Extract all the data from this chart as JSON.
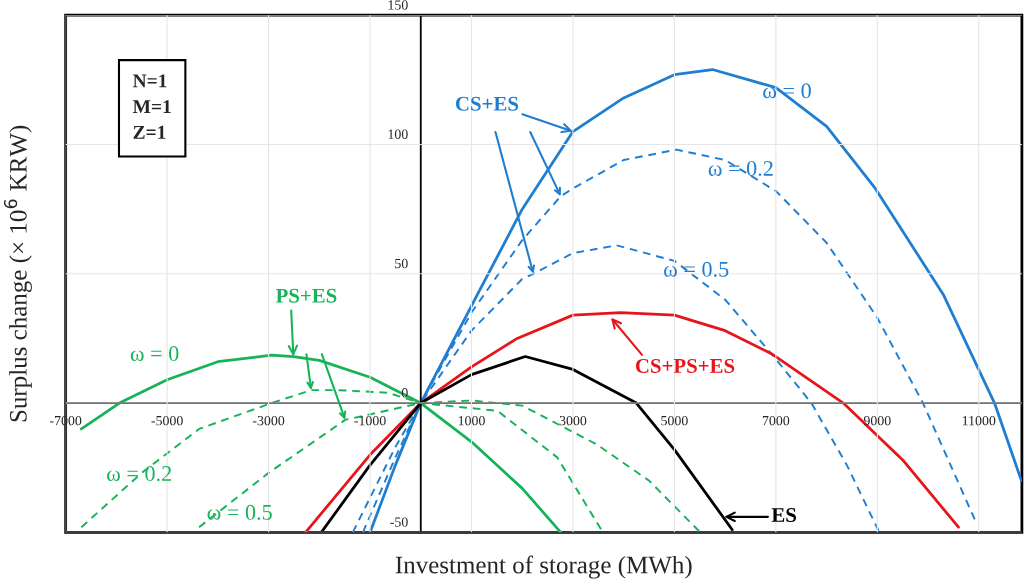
{
  "chart_data": {
    "type": "line",
    "xlabel": "Investment of storage (MWh)",
    "ylabel": "Surplus change (× 10$^{6}$ KRW)",
    "xlim": [
      -7000,
      11850
    ],
    "ylim": [
      -50,
      150
    ],
    "xticks": [
      -7000,
      -5000,
      -3000,
      -1000,
      1000,
      3000,
      5000,
      7000,
      9000,
      11000
    ],
    "yticks": [
      -50,
      0,
      50,
      100,
      150
    ],
    "grid": true,
    "marker": "none",
    "series": [
      {
        "color": "#1f7ed1",
        "line_style": "solid",
        "x": [
          -980,
          -500,
          0,
          1118,
          2000,
          3000,
          4000,
          5000,
          5750,
          7000,
          8000,
          8960,
          10300,
          11310,
          11840
        ],
        "values": [
          -49,
          -24,
          0,
          42,
          75,
          105,
          118,
          127,
          129,
          122,
          107,
          83,
          42,
          0,
          -30
        ]
      },
      {
        "color": "#1f7ed1",
        "line_style": "dashed",
        "x": [
          -1140,
          -500,
          0,
          1000,
          2000,
          2760,
          3000,
          4000,
          5040,
          6000,
          7000,
          8000,
          9000,
          9900,
          10920
        ],
        "values": [
          -50,
          -21,
          0,
          35,
          63,
          80,
          83,
          94,
          98,
          94,
          82,
          62,
          33,
          0,
          -45
        ]
      },
      {
        "color": "#1f7ed1",
        "line_style": "dashed",
        "x": [
          -1340,
          -500,
          0,
          1000,
          2000,
          2220,
          3000,
          3860,
          5000,
          6000,
          7000,
          7700,
          8400,
          9040
        ],
        "values": [
          -50,
          -17,
          0,
          28,
          48,
          50,
          58,
          61,
          55,
          40,
          17,
          0,
          -24,
          -50
        ]
      },
      {
        "color": "#e8141c",
        "line_style": "solid",
        "x": [
          -2270,
          -1000,
          0,
          1000,
          1900,
          3000,
          3940,
          5000,
          6000,
          6920,
          8330,
          9500,
          10600
        ],
        "values": [
          -50,
          -20,
          0,
          14,
          25,
          34,
          35,
          34,
          28,
          19,
          0,
          -22,
          -48
        ]
      },
      {
        "color": "#000000",
        "line_style": "solid",
        "x": [
          -1960,
          -1000,
          0,
          1000,
          2060,
          3000,
          4250,
          5000,
          6140
        ],
        "values": [
          -50,
          -24,
          0,
          11,
          18,
          13,
          0,
          -18,
          -49
        ]
      },
      {
        "color": "#17b35a",
        "line_style": "solid",
        "x": [
          -6690,
          -5940,
          -5000,
          -4000,
          -2940,
          -2510,
          -2000,
          -1000,
          0,
          1000,
          2000,
          2760
        ],
        "values": [
          -10,
          0,
          9,
          16,
          18.5,
          18,
          16.5,
          10,
          0,
          -15,
          -33,
          -50
        ]
      },
      {
        "color": "#17b35a",
        "line_style": "dashed",
        "x": [
          -6690,
          -5500,
          -4370,
          -2940,
          -2160,
          -1630,
          -650,
          0,
          1510,
          2690,
          3590
        ],
        "values": [
          -48,
          -27,
          -10,
          0,
          5,
          5,
          4,
          0,
          -3,
          -21,
          -50
        ]
      },
      {
        "color": "#17b35a",
        "line_style": "dashed",
        "x": [
          -4370,
          -3000,
          -1490,
          0,
          1000,
          2000,
          3470,
          4500,
          5510
        ],
        "values": [
          -48,
          -27,
          -6.5,
          0,
          1,
          -1,
          -16,
          -30,
          -50
        ]
      }
    ],
    "annotations": [
      "N=1\nM=1\nZ=1",
      {
        "text": "ω = 0",
        "x": 7220,
        "y": 120
      },
      {
        "text": "ω = 0.2",
        "x": 6310,
        "y": 90
      },
      {
        "text": "ω = 0.5",
        "x": 5430,
        "y": 51
      },
      "ω = 0",
      {
        "text": "ω = 0.2",
        "x": -5550,
        "y": -28
      },
      "ω = 0.5",
      {
        "text": "CS+ES",
        "x": 3000,
        "y": 105
      },
      {
        "text": "PS+ES",
        "x": -2510,
        "y": 18
      },
      {
        "text": "CS+PS+ES",
        "x": 3750,
        "y": 33
      },
      {
        "text": "ES",
        "x": 5980,
        "y": -44
      }
    ]
  }
}
